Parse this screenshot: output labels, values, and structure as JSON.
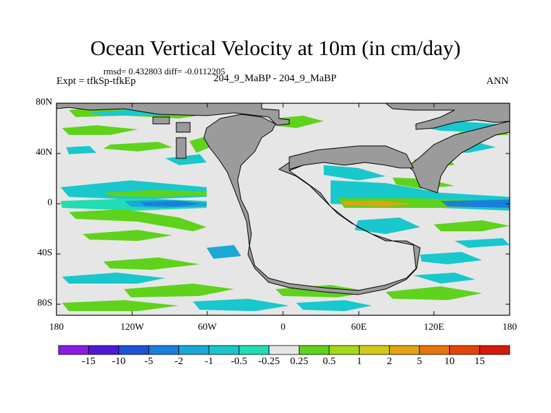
{
  "title": "Ocean Vertical Velocity at 10m (in cm/day)",
  "stats": "rmsd= 0.432803 diff= -0.0112205",
  "expt": "Expt = tfkSp-tfkEp",
  "case": "204_9_MaBP - 204_9_MaBP",
  "season": "ANN",
  "lat_labels": [
    "80N",
    "40N",
    "0",
    "40S",
    "80S"
  ],
  "lon_labels": [
    "180",
    "120W",
    "60W",
    "0",
    "60E",
    "120E",
    "180"
  ],
  "colorbar": {
    "labels": [
      "-15",
      "-10",
      "-5",
      "-2",
      "-1",
      "-0.5",
      "-0.25",
      "0.25",
      "0.5",
      "1",
      "2",
      "5",
      "10",
      "15"
    ],
    "colors": [
      "#8a1be2",
      "#4b19d8",
      "#1e52d6",
      "#1a7fdc",
      "#19a8d8",
      "#18c8cc",
      "#22dcb4",
      "#e6e6e6",
      "#5fd21c",
      "#a6d81a",
      "#d2c815",
      "#e0a312",
      "#e5740e",
      "#e2450b",
      "#d81808"
    ]
  },
  "colors": {
    "land": "#9b9b9b",
    "ocean_background": "#e6e6e6"
  }
}
